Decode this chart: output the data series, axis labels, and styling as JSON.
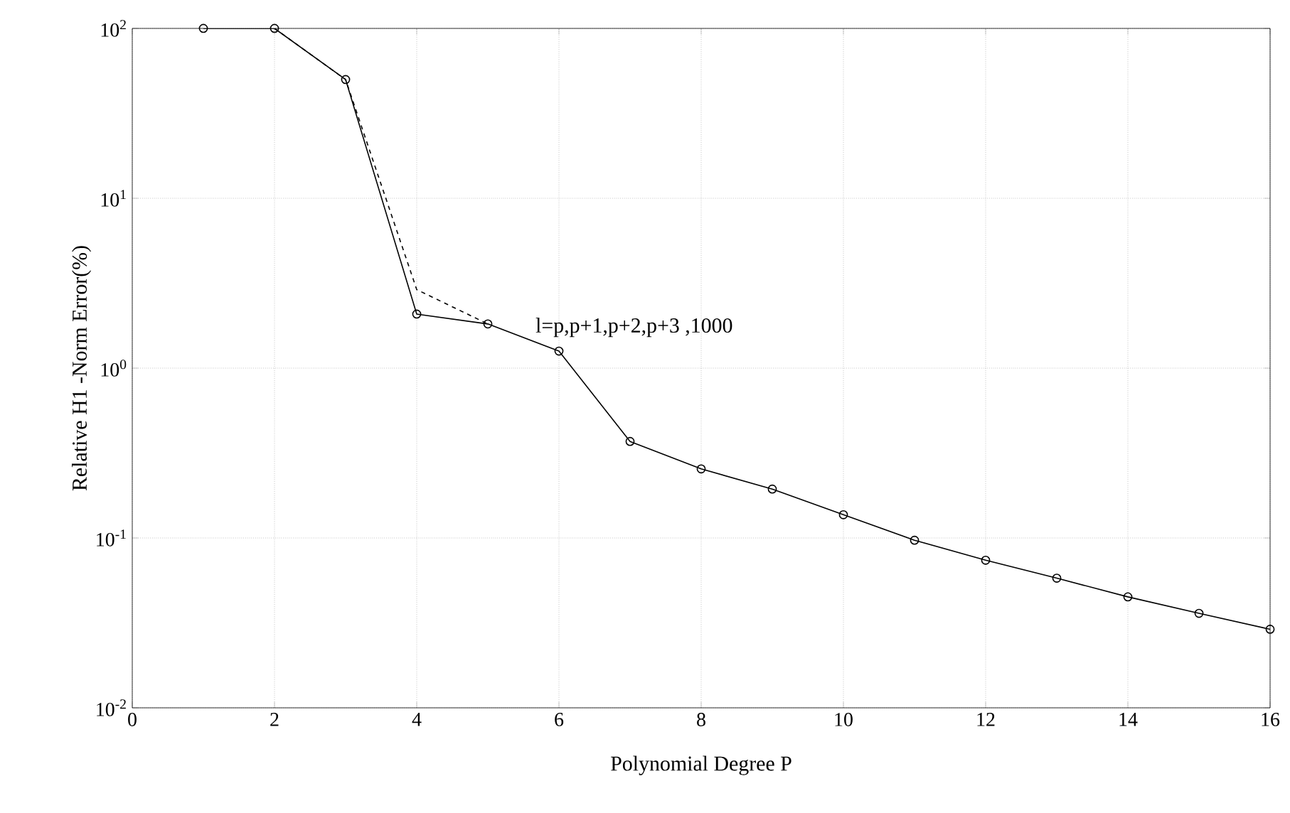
{
  "chart_data": {
    "type": "line",
    "xlabel": "Polynomial Degree P",
    "ylabel": "Relative H1 -Norm Error(%)",
    "annotations": [
      "l=p,p+1,p+2,p+3 ,1000"
    ],
    "log": "y",
    "grid": true,
    "marker": "circle",
    "xlim": [
      0,
      16
    ],
    "xticks": [
      0,
      2,
      4,
      6,
      8,
      10,
      12,
      14,
      16
    ],
    "ylim": [
      0.01,
      100
    ],
    "yticks": [
      {
        "value": 0.01,
        "label": "10$^{-2}$"
      },
      {
        "value": 0.1,
        "label": "10$^{-1}$"
      },
      {
        "value": 1,
        "label": "10$^{0}$"
      },
      {
        "value": 10,
        "label": "10$^{1}$"
      },
      {
        "value": 100,
        "label": "10$^{2}$"
      }
    ],
    "series": [
      {
        "color": "#000000",
        "line_style": "solid",
        "x": [
          1,
          2,
          3,
          4,
          5,
          6,
          7,
          8,
          9,
          10,
          11,
          12,
          13,
          14,
          15,
          16
        ],
        "values": [
          100,
          100,
          50,
          2.08,
          1.82,
          1.26,
          0.37,
          0.255,
          0.194,
          0.137,
          0.097,
          0.074,
          0.058,
          0.045,
          0.036,
          0.029
        ]
      },
      {
        "color": "#000000",
        "line_style": "dashed",
        "marker": "none",
        "x": [
          2,
          3,
          4,
          5
        ],
        "values": [
          100,
          50,
          2.9,
          1.82
        ]
      }
    ]
  }
}
